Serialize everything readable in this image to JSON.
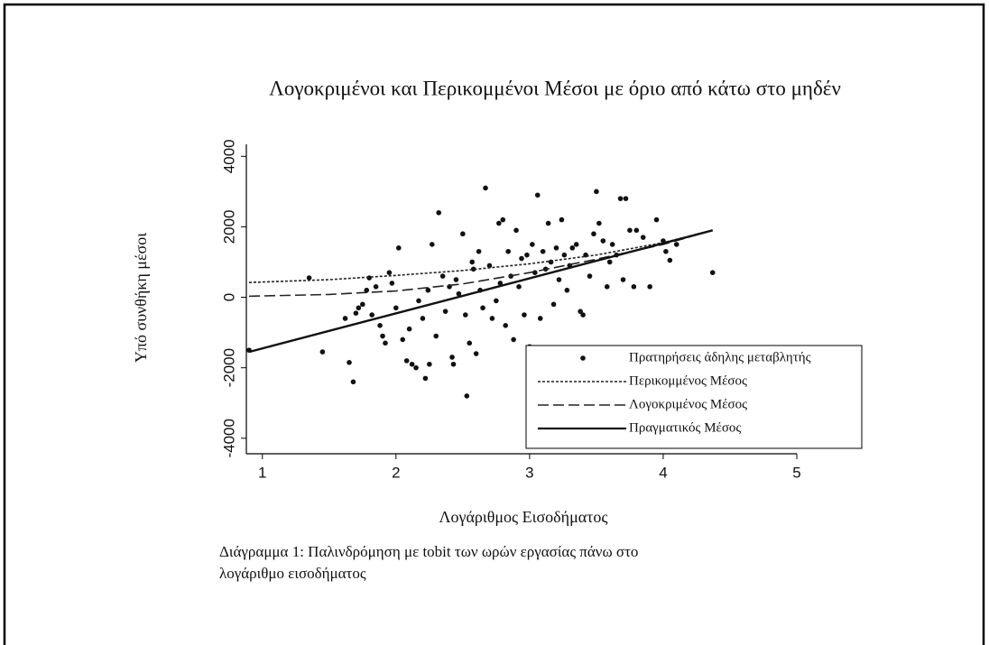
{
  "chart_data": {
    "type": "scatter",
    "title": "Λογοκριμένοι και Περικομμένοι Μέσοι με όριο από κάτω στο μηδέν",
    "x_label": "Λογάριθμος Εισοδήματος",
    "y_label": "Υπό συνθήκη μέσοι",
    "caption": [
      "Διάγραμμα 1: Παλινδρόμηση με tobit των ωρών εργασίας πάνω στο",
      "λογάριθμο εισοδήματος"
    ],
    "xlim": [
      0.88,
      5
    ],
    "xticks": [
      1,
      2,
      3,
      4,
      5
    ],
    "ylim": [
      -4440,
      4340
    ],
    "yticks": [
      -4000,
      -2000,
      0,
      2000,
      4000
    ],
    "series": [
      {
        "name": "Πρατηρήσεις άδηλης μεταβλητής",
        "type": "scatter",
        "color": "#111111",
        "x": [
          0.9,
          1.35,
          1.45,
          1.62,
          1.65,
          1.68,
          1.7,
          1.72,
          1.75,
          1.78,
          1.8,
          1.82,
          1.85,
          1.88,
          1.9,
          1.92,
          1.95,
          1.97,
          2.0,
          2.02,
          2.05,
          2.08,
          2.1,
          2.12,
          2.15,
          2.17,
          2.2,
          2.22,
          2.24,
          2.25,
          2.27,
          2.3,
          2.32,
          2.35,
          2.37,
          2.4,
          2.42,
          2.43,
          2.45,
          2.47,
          2.5,
          2.52,
          2.53,
          2.55,
          2.57,
          2.58,
          2.6,
          2.62,
          2.63,
          2.65,
          2.67,
          2.7,
          2.72,
          2.75,
          2.77,
          2.78,
          2.8,
          2.82,
          2.84,
          2.86,
          2.88,
          2.9,
          2.92,
          2.94,
          2.96,
          2.98,
          3.0,
          3.02,
          3.04,
          3.06,
          3.08,
          3.1,
          3.12,
          3.14,
          3.16,
          3.18,
          3.2,
          3.22,
          3.24,
          3.26,
          3.28,
          3.3,
          3.32,
          3.35,
          3.38,
          3.4,
          3.42,
          3.45,
          3.48,
          3.5,
          3.52,
          3.55,
          3.58,
          3.6,
          3.62,
          3.65,
          3.68,
          3.7,
          3.72,
          3.75,
          3.78,
          3.8,
          3.85,
          3.9,
          3.95,
          4.0,
          4.02,
          4.05,
          4.1,
          4.37
        ],
        "values": [
          -1500,
          550,
          -1550,
          -600,
          -1850,
          -2400,
          -450,
          -300,
          -200,
          200,
          550,
          -500,
          300,
          -800,
          -1100,
          -1300,
          700,
          400,
          -300,
          1400,
          -1200,
          -1800,
          -900,
          -1900,
          -2000,
          -100,
          -600,
          -2300,
          200,
          -1900,
          1500,
          -1100,
          2400,
          600,
          -400,
          300,
          -1700,
          -1900,
          500,
          100,
          1800,
          -500,
          -2800,
          -1300,
          1000,
          800,
          -1600,
          1300,
          200,
          -300,
          3100,
          900,
          -600,
          -100,
          2100,
          400,
          2200,
          -800,
          1300,
          600,
          -1200,
          1900,
          300,
          1100,
          -500,
          1200,
          -1400,
          1500,
          700,
          2900,
          -600,
          1300,
          800,
          2100,
          1000,
          -200,
          1400,
          500,
          2200,
          1200,
          200,
          900,
          1400,
          1500,
          -400,
          -500,
          1200,
          600,
          1800,
          3000,
          2100,
          1600,
          300,
          1000,
          1500,
          1200,
          2800,
          500,
          2800,
          1900,
          300,
          1900,
          1700,
          300,
          2200,
          1600,
          1300,
          1050,
          1500,
          700
        ]
      },
      {
        "name": "Περικομμένος Μέσος",
        "type": "line",
        "dash": "3 2",
        "color": "#222222",
        "x": [
          0.9,
          1.5,
          2,
          2.5,
          3,
          3.5,
          4,
          4.37
        ],
        "values": [
          420,
          500,
          620,
          760,
          950,
          1200,
          1550,
          1900
        ]
      },
      {
        "name": "Λογοκριμένος Μέσος",
        "type": "line",
        "dash": "12 5",
        "color": "#222222",
        "x": [
          0.9,
          1.5,
          2,
          2.5,
          3,
          3.5,
          4,
          4.37
        ],
        "values": [
          30,
          80,
          180,
          380,
          700,
          1080,
          1500,
          1900
        ]
      },
      {
        "name": "Πραγματικός Μέσος",
        "type": "line",
        "dash": "none",
        "color": "#111111",
        "x": [
          0.9,
          4.37
        ],
        "values": [
          -1550,
          1900
        ]
      }
    ]
  }
}
